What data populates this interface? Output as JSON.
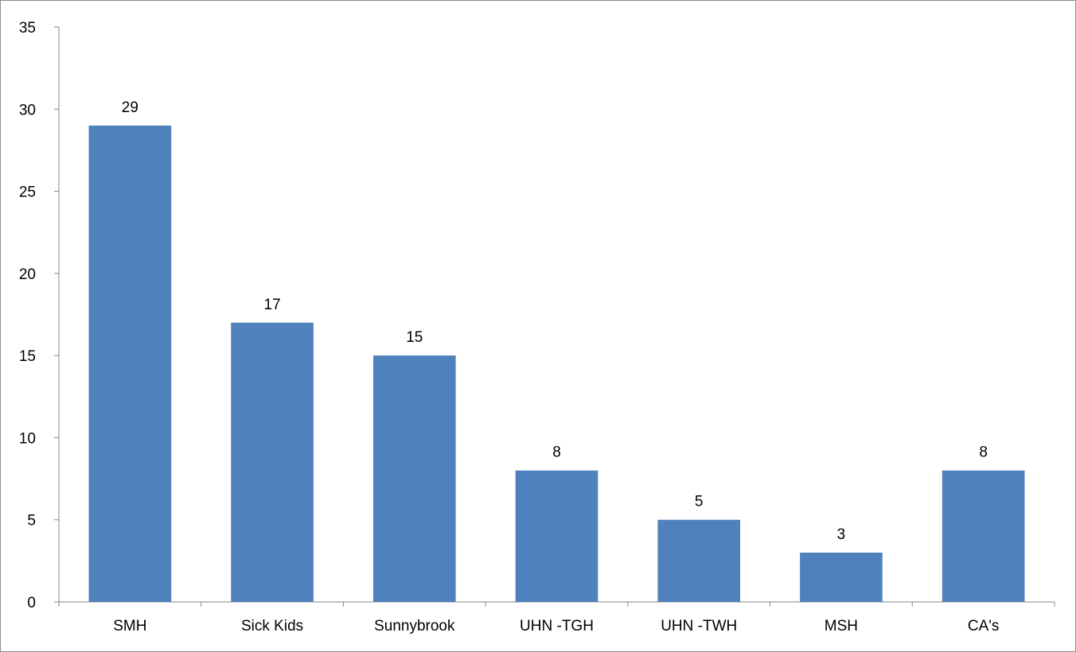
{
  "chart_data": {
    "type": "bar",
    "title": "",
    "xlabel": "",
    "ylabel": "",
    "categories": [
      "SMH",
      "Sick Kids",
      "Sunnybrook",
      "UHN -TGH",
      "UHN -TWH",
      "MSH",
      "CA's"
    ],
    "values": [
      29,
      17,
      15,
      8,
      5,
      3,
      8
    ],
    "data_labels": [
      "29",
      "17",
      "15",
      "8",
      "5",
      "3",
      "8"
    ],
    "ylim": [
      0,
      35
    ],
    "yticks": [
      0,
      5,
      10,
      15,
      20,
      25,
      30,
      35
    ],
    "ytick_labels": [
      "0",
      "5",
      "10",
      "15",
      "20",
      "25",
      "30",
      "35"
    ],
    "grid": false,
    "legend": "none",
    "bar_color": "#4f81bd",
    "axis_color": "#868686"
  }
}
